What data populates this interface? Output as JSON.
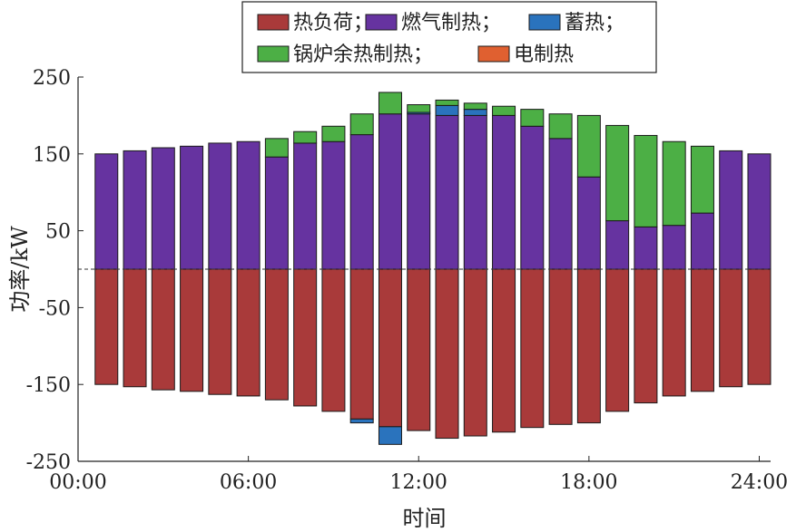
{
  "chart_data": {
    "type": "bar",
    "stacked": true,
    "xlabel": "时间",
    "ylabel": "功率/kW",
    "ylim": [
      -250,
      250
    ],
    "yticks": [
      250,
      150,
      50,
      -50,
      -150,
      -250
    ],
    "xticks": [
      "00:00",
      "06:00",
      "12:00",
      "18:00",
      "24:00"
    ],
    "xtick_hours": [
      0,
      6,
      12,
      18,
      24
    ],
    "x_hours": [
      1,
      2,
      3,
      4,
      5,
      6,
      7,
      8,
      9,
      10,
      11,
      12,
      13,
      14,
      15,
      16,
      17,
      18,
      19,
      20,
      21,
      22,
      23,
      24
    ],
    "grid": false,
    "zero_line": "dashed",
    "legend_position": "top-center",
    "series": [
      {
        "name": "热负荷；",
        "color": "#a93a3a",
        "values": [
          -150,
          -153,
          -157,
          -159,
          -163,
          -165,
          -170,
          -178,
          -185,
          -195,
          -205,
          -210,
          -220,
          -217,
          -212,
          -206,
          -202,
          -200,
          -185,
          -174,
          -165,
          -159,
          -153,
          -150
        ]
      },
      {
        "name": "燃气制热；",
        "color": "#6633a0",
        "values": [
          150,
          154,
          158,
          160,
          164,
          166,
          146,
          164,
          166,
          175,
          202,
          202,
          200,
          200,
          200,
          186,
          170,
          120,
          63,
          55,
          57,
          73,
          154,
          150
        ]
      },
      {
        "name": "蓄热；",
        "color": "#2a73bd",
        "values": [
          0,
          0,
          0,
          0,
          0,
          0,
          0,
          0,
          0,
          -5,
          -23,
          2,
          13,
          8,
          0,
          0,
          0,
          0,
          0,
          0,
          0,
          0,
          0,
          0
        ]
      },
      {
        "name": "锅炉余热制热；",
        "color": "#4caf45",
        "values": [
          0,
          0,
          0,
          0,
          0,
          0,
          24,
          15,
          20,
          27,
          28,
          10,
          7,
          8,
          12,
          22,
          32,
          80,
          124,
          119,
          109,
          87,
          0,
          0
        ]
      },
      {
        "name": "电制热",
        "color": "#e06030",
        "values": [
          0,
          0,
          0,
          0,
          0,
          0,
          0,
          0,
          0,
          0,
          0,
          0,
          0,
          0,
          0,
          0,
          0,
          0,
          0,
          0,
          0,
          0,
          0,
          0
        ]
      }
    ]
  }
}
